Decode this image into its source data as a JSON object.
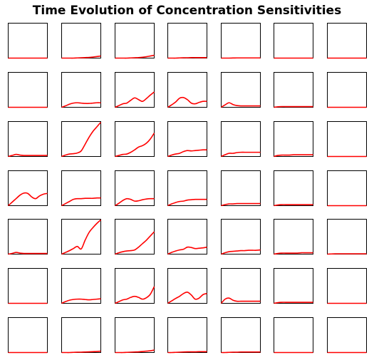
{
  "title": "Time Evolution of Concentration Sensitivities",
  "colors": {
    "line": "#ff0000",
    "axes": "#000000",
    "background": "#ffffff"
  },
  "chart_data": {
    "type": "line",
    "grid_rows": 7,
    "grid_cols": 7,
    "title": "Time Evolution of Concentration Sensitivities",
    "xlabel": "",
    "ylabel": "",
    "ticks": "none",
    "grid": false,
    "legend": "none",
    "t": [
      0,
      1,
      2,
      3,
      4,
      5,
      6,
      7,
      8,
      9,
      10
    ],
    "ylim": [
      0,
      1
    ],
    "panels": [
      [
        {
          "y": [
            0,
            0,
            0,
            0,
            0,
            0,
            0,
            0,
            0,
            0,
            0
          ]
        },
        {
          "y": [
            0,
            0,
            0,
            0,
            0.005,
            0.01,
            0.015,
            0.02,
            0.03,
            0.045,
            0.06
          ]
        },
        {
          "y": [
            0,
            0,
            0,
            0,
            0.005,
            0.01,
            0.015,
            0.025,
            0.04,
            0.06,
            0.08
          ]
        },
        {
          "y": [
            0,
            0,
            0,
            0.005,
            0.01,
            0.01,
            0.015,
            0.015,
            0.015,
            0.015,
            0.015
          ]
        },
        {
          "y": [
            0,
            0,
            0,
            0.003,
            0.005,
            0.005,
            0.005,
            0.005,
            0.005,
            0.005,
            0.005
          ]
        },
        {
          "y": [
            0,
            0,
            0,
            0,
            0,
            0,
            0,
            0,
            0,
            0,
            0
          ]
        },
        {
          "y": [
            0,
            0,
            0,
            0,
            0,
            0,
            0,
            0,
            0,
            0,
            0
          ]
        }
      ],
      [
        {
          "y": [
            0,
            0,
            0,
            0,
            0,
            0,
            0,
            0,
            0,
            0,
            0
          ]
        },
        {
          "y": [
            0,
            0.04,
            0.09,
            0.12,
            0.13,
            0.12,
            0.11,
            0.11,
            0.12,
            0.13,
            0.13
          ]
        },
        {
          "y": [
            0,
            0.05,
            0.1,
            0.12,
            0.2,
            0.27,
            0.22,
            0.17,
            0.25,
            0.35,
            0.44
          ]
        },
        {
          "y": [
            0,
            0.07,
            0.15,
            0.26,
            0.28,
            0.22,
            0.12,
            0.1,
            0.14,
            0.17,
            0.17
          ]
        },
        {
          "y": [
            0,
            0.07,
            0.13,
            0.08,
            0.05,
            0.04,
            0.04,
            0.04,
            0.04,
            0.04,
            0.04
          ]
        },
        {
          "y": [
            0,
            0.015,
            0.02,
            0.02,
            0.02,
            0.02,
            0.02,
            0.02,
            0.02,
            0.02,
            0.02
          ]
        },
        {
          "y": [
            0,
            0,
            0,
            0,
            0,
            0,
            0,
            0,
            0,
            0,
            0
          ]
        }
      ],
      [
        {
          "y": [
            0,
            0.03,
            0.06,
            0.04,
            0.03,
            0.03,
            0.03,
            0.03,
            0.03,
            0.03,
            0.03
          ]
        },
        {
          "y": [
            0,
            0.04,
            0.07,
            0.08,
            0.1,
            0.16,
            0.35,
            0.55,
            0.72,
            0.85,
            0.98
          ]
        },
        {
          "y": [
            0,
            0.03,
            0.06,
            0.07,
            0.12,
            0.19,
            0.27,
            0.31,
            0.38,
            0.5,
            0.67
          ]
        },
        {
          "y": [
            0,
            0.04,
            0.07,
            0.09,
            0.14,
            0.17,
            0.16,
            0.17,
            0.18,
            0.19,
            0.19
          ]
        },
        {
          "y": [
            0,
            0.05,
            0.09,
            0.09,
            0.11,
            0.12,
            0.12,
            0.12,
            0.12,
            0.12,
            0.12
          ]
        },
        {
          "y": [
            0,
            0.03,
            0.04,
            0.04,
            0.04,
            0.05,
            0.05,
            0.05,
            0.05,
            0.05,
            0.05
          ]
        },
        {
          "y": [
            0,
            0,
            0,
            0,
            0,
            0,
            0,
            0,
            0,
            0,
            0
          ]
        }
      ],
      [
        {
          "y": [
            0,
            0.1,
            0.2,
            0.3,
            0.36,
            0.35,
            0.25,
            0.2,
            0.28,
            0.33,
            0.35
          ]
        },
        {
          "y": [
            0,
            0.06,
            0.12,
            0.18,
            0.2,
            0.2,
            0.21,
            0.21,
            0.21,
            0.22,
            0.22
          ]
        },
        {
          "y": [
            0,
            0.07,
            0.15,
            0.2,
            0.18,
            0.13,
            0.14,
            0.17,
            0.19,
            0.2,
            0.2
          ]
        },
        {
          "y": [
            0,
            0.05,
            0.09,
            0.12,
            0.13,
            0.16,
            0.17,
            0.18,
            0.18,
            0.18,
            0.18
          ]
        },
        {
          "y": [
            0,
            0.03,
            0.05,
            0.05,
            0.06,
            0.06,
            0.06,
            0.06,
            0.06,
            0.06,
            0.06
          ]
        },
        {
          "y": [
            0,
            0.02,
            0.03,
            0.03,
            0.03,
            0.03,
            0.03,
            0.03,
            0.03,
            0.03,
            0.03
          ]
        },
        {
          "y": [
            0,
            0,
            0,
            0,
            0,
            0,
            0,
            0,
            0,
            0,
            0
          ]
        }
      ],
      [
        {
          "y": [
            0,
            0.02,
            0.05,
            0.03,
            0.02,
            0.02,
            0.02,
            0.02,
            0.02,
            0.02,
            0.02
          ]
        },
        {
          "y": [
            0,
            0.05,
            0.1,
            0.16,
            0.22,
            0.15,
            0.4,
            0.62,
            0.76,
            0.88,
            0.98
          ]
        },
        {
          "y": [
            0,
            0.04,
            0.07,
            0.09,
            0.1,
            0.12,
            0.2,
            0.3,
            0.4,
            0.52,
            0.64
          ]
        },
        {
          "y": [
            0,
            0.05,
            0.09,
            0.12,
            0.14,
            0.2,
            0.19,
            0.16,
            0.17,
            0.18,
            0.2
          ]
        },
        {
          "y": [
            0,
            0.04,
            0.07,
            0.08,
            0.09,
            0.1,
            0.1,
            0.11,
            0.11,
            0.11,
            0.12
          ]
        },
        {
          "y": [
            0,
            0.02,
            0.03,
            0.03,
            0.03,
            0.03,
            0.03,
            0.04,
            0.04,
            0.04,
            0.04
          ]
        },
        {
          "y": [
            0,
            0.005,
            0.01,
            0.01,
            0.01,
            0.01,
            0.01,
            0.01,
            0.01,
            0.01,
            0.01
          ]
        }
      ],
      [
        {
          "y": [
            0,
            0,
            0,
            0,
            0,
            0,
            0,
            0,
            0,
            0,
            0
          ]
        },
        {
          "y": [
            0,
            0.05,
            0.09,
            0.11,
            0.12,
            0.12,
            0.11,
            0.1,
            0.11,
            0.12,
            0.13
          ]
        },
        {
          "y": [
            0,
            0.05,
            0.1,
            0.12,
            0.17,
            0.2,
            0.17,
            0.12,
            0.16,
            0.26,
            0.48
          ]
        },
        {
          "y": [
            0,
            0.07,
            0.14,
            0.2,
            0.28,
            0.32,
            0.24,
            0.12,
            0.15,
            0.25,
            0.28
          ]
        },
        {
          "y": [
            0,
            0.12,
            0.15,
            0.09,
            0.06,
            0.06,
            0.06,
            0.06,
            0.06,
            0.06,
            0.06
          ]
        },
        {
          "y": [
            0,
            0.02,
            0.03,
            0.03,
            0.03,
            0.03,
            0.03,
            0.03,
            0.03,
            0.03,
            0.03
          ]
        },
        {
          "y": [
            0,
            0,
            0,
            0,
            0,
            0,
            0,
            0,
            0,
            0,
            0
          ]
        }
      ],
      [
        {
          "y": [
            0,
            0,
            0,
            0,
            0,
            0,
            0,
            0,
            0,
            0,
            0
          ]
        },
        {
          "y": [
            0,
            0,
            0,
            0.005,
            0.01,
            0.01,
            0.015,
            0.02,
            0.025,
            0.03,
            0.04
          ]
        },
        {
          "y": [
            0,
            0,
            0,
            0.005,
            0.01,
            0.015,
            0.02,
            0.03,
            0.04,
            0.05,
            0.07
          ]
        },
        {
          "y": [
            0,
            0,
            0.005,
            0.01,
            0.015,
            0.02,
            0.02,
            0.02,
            0.025,
            0.025,
            0.025
          ]
        },
        {
          "y": [
            0,
            0,
            0.005,
            0.01,
            0.01,
            0.015,
            0.015,
            0.015,
            0.015,
            0.015,
            0.015
          ]
        },
        {
          "y": [
            0,
            0,
            0,
            0,
            0,
            0,
            0,
            0,
            0,
            0,
            0
          ]
        },
        {
          "y": [
            0,
            0,
            0,
            0,
            0,
            0,
            0,
            0,
            0,
            0,
            0
          ]
        }
      ]
    ]
  }
}
